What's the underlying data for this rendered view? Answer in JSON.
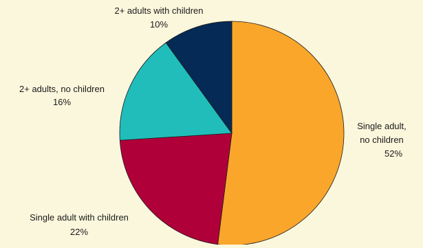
{
  "chart_data": {
    "type": "pie",
    "title": "",
    "start_angle_deg": 0,
    "direction": "clockwise",
    "slices": [
      {
        "label_lines": [
          "Single adult,",
          "no children"
        ],
        "value": 52,
        "value_label": "52%",
        "color": "#F9A62B"
      },
      {
        "label_lines": [
          "Single adult with children"
        ],
        "value": 22,
        "value_label": "22%",
        "color": "#B0003A"
      },
      {
        "label_lines": [
          "2+ adults, no children"
        ],
        "value": 16,
        "value_label": "16%",
        "color": "#21BDBA"
      },
      {
        "label_lines": [
          "2+ adults with children"
        ],
        "value": 10,
        "value_label": "10%",
        "color": "#052A56"
      }
    ]
  },
  "colors": {
    "background": "#FBF7DD",
    "outline": "#1a1a1a"
  }
}
